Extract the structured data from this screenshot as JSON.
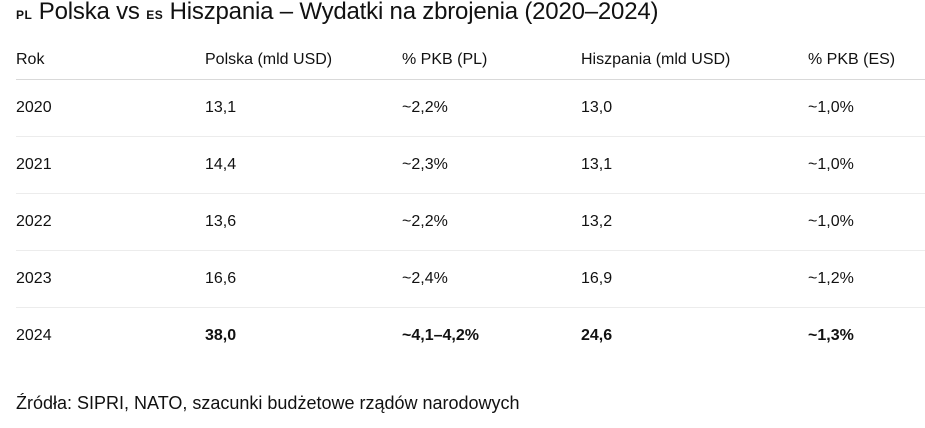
{
  "title": {
    "flag_pl": "PL",
    "part1": " Polska vs ",
    "flag_es": "ES",
    "part2": " Hiszpania – Wydatki na zbrojenia (2020–2024)"
  },
  "table": {
    "headers": [
      "Rok",
      "Polska (mld USD)",
      "% PKB (PL)",
      "Hiszpania (mld USD)",
      "% PKB (ES)"
    ],
    "rows": [
      {
        "year": "2020",
        "pl_usd": "13,1",
        "pl_gdp": "~2,2%",
        "es_usd": "13,0",
        "es_gdp": "~1,0%"
      },
      {
        "year": "2021",
        "pl_usd": "14,4",
        "pl_gdp": "~2,3%",
        "es_usd": "13,1",
        "es_gdp": "~1,0%"
      },
      {
        "year": "2022",
        "pl_usd": "13,6",
        "pl_gdp": "~2,2%",
        "es_usd": "13,2",
        "es_gdp": "~1,0%"
      },
      {
        "year": "2023",
        "pl_usd": "16,6",
        "pl_gdp": "~2,4%",
        "es_usd": "16,9",
        "es_gdp": "~1,2%"
      },
      {
        "year": "2024",
        "pl_usd": "38,0",
        "pl_gdp": "~4,1–4,2%",
        "es_usd": "24,6",
        "es_gdp": "~1,3%"
      }
    ]
  },
  "sources": "Źródła: SIPRI, NATO, szacunki budżetowe rządów narodowych",
  "colors": {
    "text": "#111111",
    "header_divider": "#d9d9d9",
    "row_divider": "#ececec",
    "background": "#ffffff"
  }
}
